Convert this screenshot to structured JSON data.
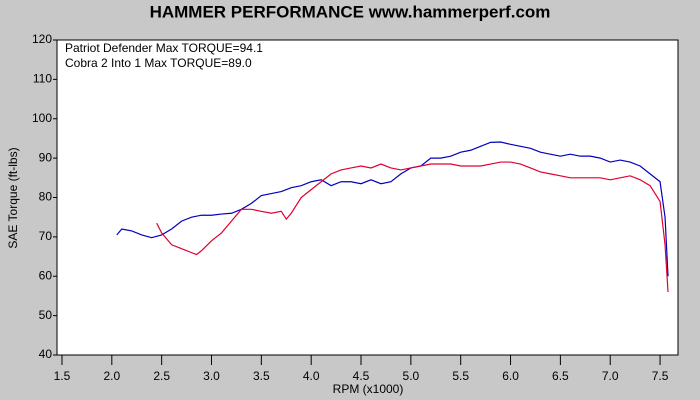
{
  "chart_data": {
    "type": "line",
    "title": "HAMMER PERFORMANCE www.hammerperf.com",
    "x_label": "RPM (x1000)",
    "y_label": "SAE Torque (ft-lbs)",
    "xlim": [
      1.45,
      7.68
    ],
    "ylim": [
      40,
      120
    ],
    "xticks": [
      1.5,
      {
        "value": 2,
        "label": "2.0"
      },
      2.5,
      {
        "value": 3,
        "label": "3.0"
      },
      3.5,
      {
        "value": 4,
        "label": "4.0"
      },
      4.5,
      {
        "value": 5,
        "label": "5.0"
      },
      5.5,
      {
        "value": 6,
        "label": "6.0"
      },
      6.5,
      {
        "value": 7,
        "label": "7.0"
      },
      7.5
    ],
    "yticks": [
      40,
      50,
      60,
      70,
      80,
      90,
      100,
      110,
      120
    ],
    "series": [
      {
        "name": "Patriot Defender  Max TORQUE=94.1",
        "color": "#0000c0",
        "x": [
          2.05,
          2.1,
          2.2,
          2.3,
          2.4,
          2.5,
          2.6,
          2.7,
          2.8,
          2.9,
          3.0,
          3.1,
          3.2,
          3.3,
          3.4,
          3.5,
          3.6,
          3.7,
          3.8,
          3.9,
          4.0,
          4.1,
          4.2,
          4.3,
          4.4,
          4.5,
          4.6,
          4.7,
          4.8,
          4.9,
          5.0,
          5.1,
          5.2,
          5.3,
          5.4,
          5.5,
          5.6,
          5.7,
          5.8,
          5.9,
          6.0,
          6.1,
          6.2,
          6.3,
          6.4,
          6.5,
          6.6,
          6.7,
          6.8,
          6.9,
          7.0,
          7.1,
          7.2,
          7.3,
          7.4,
          7.5,
          7.55,
          7.58
        ],
        "values": [
          70.5,
          72,
          71.5,
          70.5,
          69.8,
          70.5,
          72,
          74,
          75,
          75.5,
          75.5,
          75.8,
          76,
          77,
          78.5,
          80.5,
          81,
          81.5,
          82.5,
          83,
          84,
          84.5,
          83,
          84,
          84,
          83.5,
          84.5,
          83.5,
          84,
          86,
          87.5,
          88,
          90,
          90,
          90.5,
          91.5,
          92,
          93,
          94,
          94.1,
          93.5,
          93,
          92.5,
          91.5,
          91,
          90.5,
          91,
          90.5,
          90.5,
          90,
          89,
          89.5,
          89,
          88,
          86,
          84,
          75,
          60
        ]
      },
      {
        "name": "Cobra 2 Into 1  Max TORQUE=89.0",
        "color": "#e00030",
        "x": [
          2.45,
          2.5,
          2.6,
          2.7,
          2.8,
          2.85,
          2.9,
          3.0,
          3.1,
          3.2,
          3.3,
          3.4,
          3.5,
          3.6,
          3.7,
          3.75,
          3.8,
          3.9,
          4.0,
          4.1,
          4.2,
          4.3,
          4.4,
          4.5,
          4.6,
          4.7,
          4.8,
          4.9,
          5.0,
          5.1,
          5.2,
          5.3,
          5.4,
          5.5,
          5.6,
          5.7,
          5.8,
          5.9,
          6.0,
          6.1,
          6.2,
          6.3,
          6.4,
          6.5,
          6.6,
          6.7,
          6.8,
          6.9,
          7.0,
          7.1,
          7.2,
          7.3,
          7.4,
          7.5,
          7.55,
          7.58
        ],
        "values": [
          73.5,
          71,
          68,
          67,
          66,
          65.5,
          66.5,
          69,
          71,
          74,
          77,
          77,
          76.5,
          76,
          76.5,
          74.5,
          76,
          80,
          82,
          84,
          86,
          87,
          87.5,
          88,
          87.5,
          88.5,
          87.5,
          87,
          87.5,
          88,
          88.5,
          88.5,
          88.5,
          88,
          88,
          88,
          88.5,
          89,
          89,
          88.5,
          87.5,
          86.5,
          86,
          85.5,
          85,
          85,
          85,
          85,
          84.5,
          85,
          85.5,
          84.5,
          83,
          79,
          68,
          56
        ]
      }
    ]
  }
}
